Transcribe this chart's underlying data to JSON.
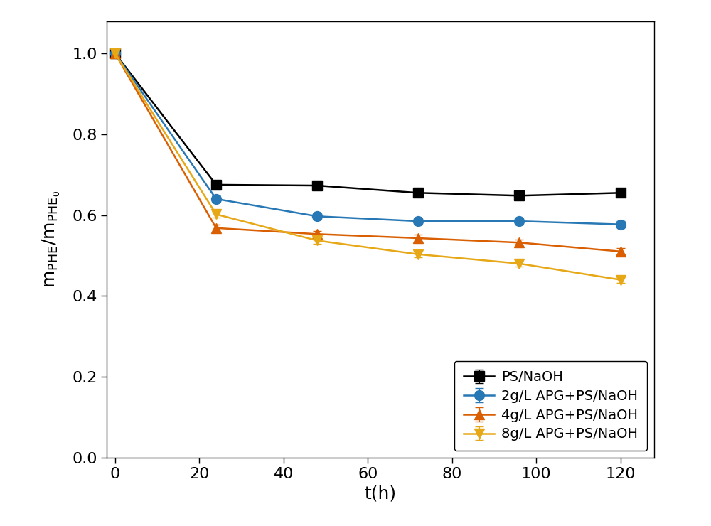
{
  "x": [
    0,
    24,
    48,
    72,
    96,
    120
  ],
  "series": [
    {
      "label": "PS/NaOH",
      "color": "#000000",
      "marker": "s",
      "y": [
        1.0,
        0.675,
        0.673,
        0.655,
        0.648,
        0.655
      ],
      "yerr": [
        0.005,
        0.008,
        0.008,
        0.008,
        0.008,
        0.008
      ]
    },
    {
      "label": "2g/L APG+PS/NaOH",
      "color": "#2878b5",
      "marker": "o",
      "y": [
        1.0,
        0.64,
        0.597,
        0.585,
        0.585,
        0.577
      ],
      "yerr": [
        0.005,
        0.008,
        0.008,
        0.008,
        0.008,
        0.008
      ]
    },
    {
      "label": "4g/L APG+PS/NaOH",
      "color": "#d95f02",
      "marker": "^",
      "y": [
        1.0,
        0.568,
        0.553,
        0.543,
        0.532,
        0.51
      ],
      "yerr": [
        0.005,
        0.008,
        0.008,
        0.008,
        0.008,
        0.008
      ]
    },
    {
      "label": "8g/L APG+PS/NaOH",
      "color": "#e6a817",
      "marker": "v",
      "y": [
        1.0,
        0.602,
        0.537,
        0.503,
        0.48,
        0.44
      ],
      "yerr": [
        0.005,
        0.008,
        0.008,
        0.008,
        0.008,
        0.008
      ]
    }
  ],
  "xlabel": "t(h)",
  "ylabel": "m$_\\mathrm{PHE}$/m$_\\mathrm{PHE_0}$",
  "xlim": [
    -2,
    128
  ],
  "ylim": [
    0,
    1.08
  ],
  "xticks": [
    0,
    20,
    40,
    60,
    80,
    100,
    120
  ],
  "yticks": [
    0,
    0.2,
    0.4,
    0.6,
    0.8,
    1.0
  ],
  "legend_loc": "lower right",
  "background_color": "#ffffff",
  "linewidth": 1.8,
  "markersize": 10,
  "capsize": 4,
  "elinewidth": 1.5,
  "tick_fontsize": 16,
  "label_fontsize": 18,
  "legend_fontsize": 14
}
